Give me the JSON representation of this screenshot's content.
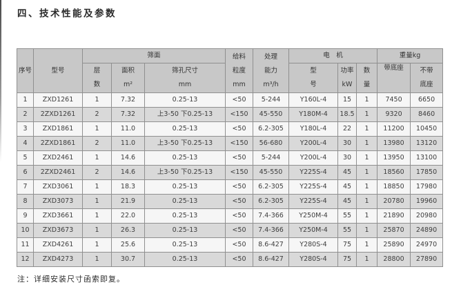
{
  "colors": {
    "header_bg": "#c8c8c8",
    "row_bg": "#f6f6f6",
    "row_shaded_bg": "#d9d9d9",
    "border": "#8f8f8f",
    "text": "#383838"
  },
  "page": {
    "title": "四、技术性能及参数",
    "note": "注：详细安装尺寸函索即复。"
  },
  "table": {
    "header": {
      "serial": "序号",
      "model": "型号",
      "screen_group": "筛面",
      "layers": "层\n数",
      "area": "面积\nm²",
      "mesh": "筛孔尺寸\nmm",
      "feed": "给料\n粒度\nmm",
      "capacity": "处理\n能力\nm³/h",
      "motor_group": "电　机",
      "motor_model": "型\n号",
      "power": "功率\nkW",
      "qty": "数\n量",
      "weight_group": "重量kg",
      "weight_with_base": "带底座",
      "weight_without_base": "不带\n底座"
    },
    "columns": [
      "index",
      "model",
      "layers",
      "area",
      "mesh-size",
      "feed-size",
      "capacity",
      "motor-model",
      "power",
      "qty",
      "weight-with-base",
      "weight-without-base"
    ],
    "rows": [
      [
        "1",
        "ZXD1261",
        "1",
        "7.32",
        "0.25-13",
        "<50",
        "5-244",
        "Y160L-4",
        "15",
        "1",
        "7450",
        "6650"
      ],
      [
        "2",
        "2ZXD1261",
        "2",
        "7.32",
        "上3-50 下0.25-13",
        "<150",
        "45-550",
        "Y180M-4",
        "18.5",
        "1",
        "9320",
        "8460"
      ],
      [
        "3",
        "ZXD1861",
        "1",
        "11.0",
        "0.25-13",
        "<50",
        "6.2-305",
        "Y180L-4",
        "22",
        "1",
        "11200",
        "10450"
      ],
      [
        "4",
        "2ZXD1861",
        "2",
        "11.0",
        "上3-50 下0.25-13",
        "<150",
        "56-680",
        "Y200L-4",
        "30",
        "1",
        "13980",
        "13120"
      ],
      [
        "5",
        "ZXD2461",
        "1",
        "14.6",
        "0.25-13",
        "<50",
        "5-244",
        "Y200L-4",
        "30",
        "1",
        "13950",
        "13100"
      ],
      [
        "6",
        "2ZXD2461",
        "2",
        "14.6",
        "上3-50 下0.25-13",
        "<150",
        "45-550",
        "Y225S-4",
        "45",
        "1",
        "18560",
        "17850"
      ],
      [
        "7",
        "ZXD3061",
        "1",
        "18.3",
        "0.25-13",
        "<50",
        "6.2-305",
        "Y225S-4",
        "45",
        "1",
        "18850",
        "17980"
      ],
      [
        "8",
        "ZXD3073",
        "1",
        "21.9",
        "0.25-13",
        "<50",
        "6.2-305",
        "Y225S-4",
        "45",
        "1",
        "20780",
        "19960"
      ],
      [
        "9",
        "ZXD3661",
        "1",
        "22.0",
        "0.25-13",
        "<50",
        "7.4-366",
        "Y250M-4",
        "55",
        "1",
        "21890",
        "20980"
      ],
      [
        "10",
        "ZXD3673",
        "1",
        "26.3",
        "0.25-13",
        "<50",
        "7.4-366",
        "Y250M-4",
        "55",
        "1",
        "25870",
        "24890"
      ],
      [
        "11",
        "ZXD4261",
        "1",
        "25.6",
        "0.25-13",
        "<50",
        "8.6-427",
        "Y280S-4",
        "75",
        "1",
        "25890",
        "24970"
      ],
      [
        "12",
        "ZXD4273",
        "1",
        "30.7",
        "0.25-13",
        "<50",
        "8.6-427",
        "Y280S-4",
        "75",
        "1",
        "28800",
        "27890"
      ]
    ]
  }
}
